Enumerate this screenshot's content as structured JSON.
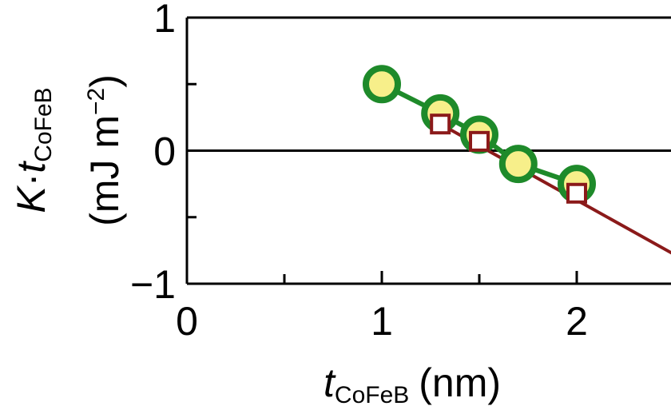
{
  "chart_data": {
    "type": "scatter",
    "xlabel": {
      "var": "t",
      "sub": "CoFeB",
      "unit": "(nm)"
    },
    "ylabel": {
      "var1": "K",
      "dot": "·",
      "var2": "t",
      "sub": "CoFeB",
      "unit_pre": "(mJ m",
      "unit_sup": "−2",
      "unit_post": ")"
    },
    "xlim": [
      0,
      2.5
    ],
    "ylim": [
      -1,
      1
    ],
    "x_ticks": [
      0,
      1,
      2
    ],
    "x_tick_labels": [
      "0",
      "1",
      "2"
    ],
    "y_ticks": [
      -1,
      0,
      1
    ],
    "y_tick_labels": [
      "−1",
      "0",
      "1"
    ],
    "grid": false,
    "zero_line": true,
    "series": [
      {
        "marker": "circle",
        "fill_color": "#f7ef8a",
        "edge_color": "#1e8a2a",
        "line_color": "#1e8a2a",
        "x": [
          1.0,
          1.3,
          1.5,
          1.7,
          2.0
        ],
        "y": [
          0.5,
          0.28,
          0.12,
          -0.1,
          -0.25
        ]
      },
      {
        "marker": "square",
        "fill_color": "#ffffff",
        "edge_color": "#8b1a1a",
        "line_color": "#8b1a1a",
        "x": [
          1.3,
          1.5,
          2.0
        ],
        "y": [
          0.2,
          0.07,
          -0.32
        ],
        "fit_line": {
          "x": [
            1.3,
            2.5
          ],
          "y": [
            0.2,
            -0.78
          ]
        }
      }
    ]
  }
}
